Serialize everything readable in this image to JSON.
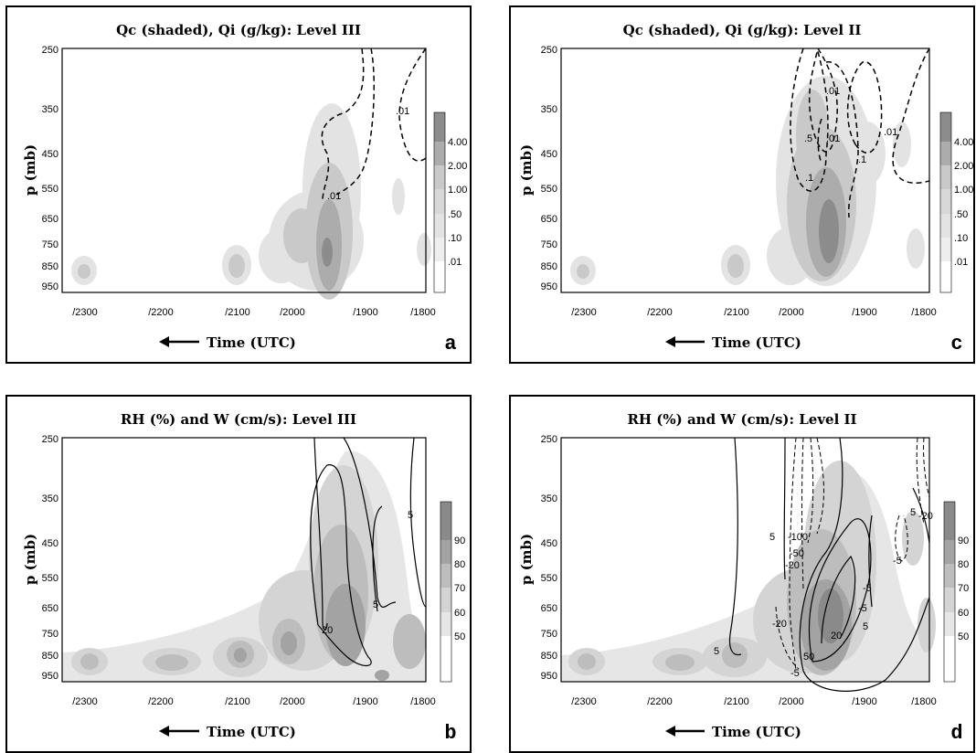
{
  "chart_data": [
    {
      "type": "contour",
      "panel": "a",
      "title": "Qc (shaded), Qi (g/kg): Level III",
      "ylabel": "p (mb)",
      "xlabel": "Time (UTC)",
      "y_ticks": [
        "250",
        "350",
        "450",
        "550",
        "650",
        "750",
        "850",
        "950"
      ],
      "x_ticks": [
        "/2300",
        "/2200",
        "/2100",
        "/2000",
        "/1900",
        "/1800"
      ],
      "colorbar_labels": [
        "4.00",
        "2.00",
        "1.00",
        ".50",
        ".10",
        ".01"
      ],
      "contour_labels": [
        ".01",
        ".01"
      ],
      "panel_letter": "a"
    },
    {
      "type": "contour",
      "panel": "b",
      "title": "RH (%) and W (cm/s): Level III",
      "ylabel": "p (mb)",
      "xlabel": "Time (UTC)",
      "y_ticks": [
        "250",
        "350",
        "450",
        "550",
        "650",
        "750",
        "850",
        "950"
      ],
      "x_ticks": [
        "/2300",
        "/2200",
        "/2100",
        "/2000",
        "/1900",
        "/1800"
      ],
      "colorbar_labels": [
        "90",
        "80",
        "70",
        "60",
        "50"
      ],
      "contour_labels": [
        "5",
        "5",
        "20"
      ],
      "panel_letter": "b"
    },
    {
      "type": "contour",
      "panel": "c",
      "title": "Qc (shaded), Qi (g/kg): Level II",
      "ylabel": "p (mb)",
      "xlabel": "Time (UTC)",
      "y_ticks": [
        "250",
        "350",
        "450",
        "550",
        "650",
        "750",
        "850",
        "950"
      ],
      "x_ticks": [
        "/2300",
        "/2200",
        "/2100",
        "/2000",
        "/1900",
        "/1800"
      ],
      "colorbar_labels": [
        "4.00",
        "2.00",
        "1.00",
        ".50",
        ".10",
        ".01"
      ],
      "contour_labels": [
        ".01",
        ".5",
        ".01",
        ".1",
        ".1",
        ".01"
      ],
      "panel_letter": "c"
    },
    {
      "type": "contour",
      "panel": "d",
      "title": "RH (%) and W (cm/s): Level II",
      "ylabel": "p (mb)",
      "xlabel": "Time (UTC)",
      "y_ticks": [
        "250",
        "350",
        "450",
        "550",
        "650",
        "750",
        "850",
        "950"
      ],
      "x_ticks": [
        "/2300",
        "/2200",
        "/2100",
        "/2000",
        "/1900",
        "/1800"
      ],
      "colorbar_labels": [
        "90",
        "80",
        "70",
        "60",
        "50"
      ],
      "contour_labels": [
        "5",
        "-100",
        "-50",
        "-20",
        "-20",
        "-5",
        "-5",
        "50",
        "20",
        "5",
        "-5",
        "5",
        "-5",
        "5",
        "-20"
      ],
      "panel_letter": "d"
    }
  ]
}
